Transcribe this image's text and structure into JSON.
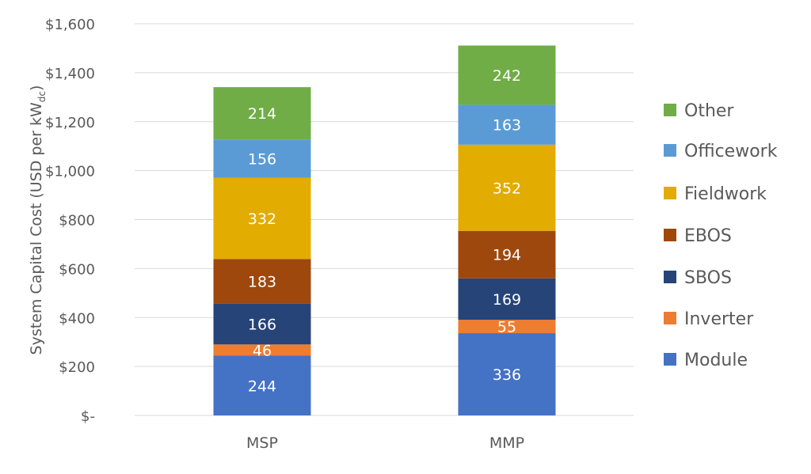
{
  "chart_data": {
    "type": "bar",
    "stacked": true,
    "title": "",
    "xlabel": "",
    "ylabel": "System Capital Cost (USD per kW",
    "ylabel_sub": "dc",
    "ylabel_end": ")",
    "ylim": [
      0,
      1600
    ],
    "yticks": [
      0,
      200,
      400,
      600,
      800,
      1000,
      1200,
      1400,
      1600
    ],
    "ytick_labels": [
      "$-",
      "$200",
      "$400",
      "$600",
      "$800",
      "$1,000",
      "$1,200",
      "$1,400",
      "$1,600"
    ],
    "grid": true,
    "legend_position": "right",
    "categories": [
      "MSP",
      "MMP"
    ],
    "series": [
      {
        "name": "Module",
        "color": "#4472C4",
        "values": [
          244,
          336
        ]
      },
      {
        "name": "Inverter",
        "color": "#ED7D31",
        "values": [
          46,
          55
        ]
      },
      {
        "name": "SBOS",
        "color": "#264478",
        "values": [
          166,
          169
        ]
      },
      {
        "name": "EBOS",
        "color": "#9E480E",
        "values": [
          183,
          194
        ]
      },
      {
        "name": "Fieldwork",
        "color": "#E2AC00",
        "values": [
          332,
          352
        ]
      },
      {
        "name": "Officework",
        "color": "#5B9BD5",
        "values": [
          156,
          163
        ]
      },
      {
        "name": "Other",
        "color": "#70AD47",
        "values": [
          214,
          242
        ]
      }
    ]
  }
}
